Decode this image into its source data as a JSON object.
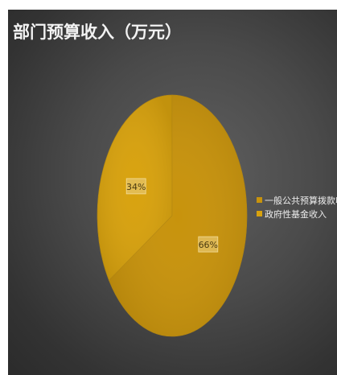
{
  "chart_data": {
    "type": "pie",
    "title": "部门预算收入（万元）",
    "categories": [
      "一般公共预算拨款收入",
      "政府性基金收入"
    ],
    "values": [
      66,
      34
    ],
    "labels": [
      "66%",
      "34%"
    ],
    "colors": [
      "#c8930c",
      "#d8a20e"
    ],
    "legend_position": "right"
  }
}
